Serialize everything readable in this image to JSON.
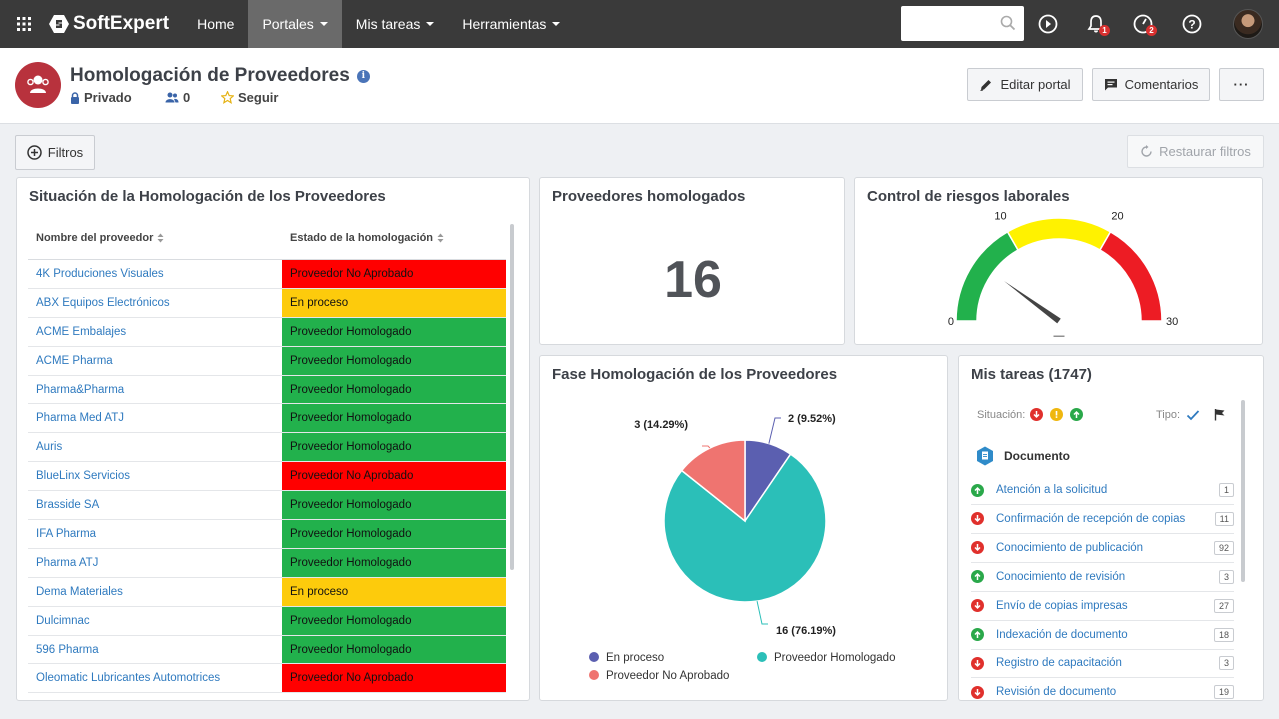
{
  "nav": {
    "brand": "SoftExpert",
    "items": [
      {
        "label": "Home",
        "caret": false,
        "active": false
      },
      {
        "label": "Portales",
        "caret": true,
        "active": true
      },
      {
        "label": "Mis tareas",
        "caret": true,
        "active": false
      },
      {
        "label": "Herramientas",
        "caret": true,
        "active": false
      }
    ],
    "search_value": "",
    "notif_badge": "1",
    "clock_badge": "2"
  },
  "header": {
    "title": "Homologación de Proveedores",
    "privacy": "Privado",
    "members": "0",
    "follow": "Seguir",
    "edit_label": "Editar portal",
    "comments_label": "Comentarios",
    "more_label": "···"
  },
  "filters": {
    "filtros_label": "Filtros",
    "restore_label": "Restaurar filtros"
  },
  "colors": {
    "red": "#ff0000",
    "yellow": "#fdcb0c",
    "green": "#22b14c",
    "pie_teal": "#2bbfb8",
    "pie_blue": "#5b5fb0",
    "pie_salmon": "#ef7470"
  },
  "suppliers": {
    "title": "Situación de la Homologación de los Proveedores",
    "col_name": "Nombre del proveedor",
    "col_status": "Estado de la homologación",
    "rows": [
      {
        "name": "4K Produciones Visuales",
        "status": "Proveedor No Aprobado",
        "color": "#ff0000"
      },
      {
        "name": "ABX Equipos Electrónicos",
        "status": "En proceso",
        "color": "#fdcb0c"
      },
      {
        "name": "ACME Embalajes",
        "status": "Proveedor Homologado",
        "color": "#22b14c"
      },
      {
        "name": "ACME Pharma",
        "status": "Proveedor Homologado",
        "color": "#22b14c"
      },
      {
        "name": "Pharma&Pharma",
        "status": "Proveedor Homologado",
        "color": "#22b14c"
      },
      {
        "name": "Pharma Med ATJ",
        "status": "Proveedor Homologado",
        "color": "#22b14c"
      },
      {
        "name": "Auris",
        "status": "Proveedor Homologado",
        "color": "#22b14c"
      },
      {
        "name": "BlueLinx Servicios",
        "status": "Proveedor No Aprobado",
        "color": "#ff0000"
      },
      {
        "name": "Brasside SA",
        "status": "Proveedor Homologado",
        "color": "#22b14c"
      },
      {
        "name": "IFA Pharma",
        "status": "Proveedor Homologado",
        "color": "#22b14c"
      },
      {
        "name": "Pharma ATJ",
        "status": "Proveedor Homologado",
        "color": "#22b14c"
      },
      {
        "name": "Dema Materiales",
        "status": "En proceso",
        "color": "#fdcb0c"
      },
      {
        "name": "Dulcimnac",
        "status": "Proveedor Homologado",
        "color": "#22b14c"
      },
      {
        "name": "596 Pharma",
        "status": "Proveedor Homologado",
        "color": "#22b14c"
      },
      {
        "name": "Oleomatic Lubricantes Automotrices",
        "status": "Proveedor No Aprobado",
        "color": "#ff0000"
      }
    ]
  },
  "homologados": {
    "title": "Proveedores homologados",
    "value": "16"
  },
  "riesgos": {
    "title": "Control de riesgos laborales",
    "ticks": [
      "0",
      "10",
      "20",
      "30"
    ],
    "min": 0,
    "max": 30,
    "value": 6,
    "value_label": "—",
    "bands": [
      {
        "from": 0,
        "to": 10,
        "color": "#22b14c"
      },
      {
        "from": 10,
        "to": 20,
        "color": "#fff200"
      },
      {
        "from": 20,
        "to": 30,
        "color": "#ed1c24"
      }
    ]
  },
  "fase": {
    "title": "Fase Homologación de los Proveedores"
  },
  "chart_data": {
    "type": "pie",
    "slices": [
      {
        "name": "En proceso",
        "value": 2,
        "label": "2 (9.52%)",
        "color": "#5b5fb0"
      },
      {
        "name": "Proveedor Homologado",
        "value": 16,
        "label": "16 (76.19%)",
        "color": "#2bbfb8"
      },
      {
        "name": "Proveedor No Aprobado",
        "value": 3,
        "label": "3 (14.29%)",
        "color": "#ef7470"
      }
    ],
    "legend": [
      "En proceso",
      "Proveedor Homologado",
      "Proveedor No Aprobado"
    ],
    "legend_placement": "bottom"
  },
  "tareas": {
    "title": "Mis tareas (1747)",
    "situacion_label": "Situación:",
    "tipo_label": "Tipo:",
    "group_label": "Documento",
    "items": [
      {
        "label": "Atención a la solicitud",
        "count": "1",
        "dir": "up"
      },
      {
        "label": "Confirmación de recepción de copias",
        "count": "11",
        "dir": "down"
      },
      {
        "label": "Conocimiento de publicación",
        "count": "92",
        "dir": "down"
      },
      {
        "label": "Conocimiento de revisión",
        "count": "3",
        "dir": "up"
      },
      {
        "label": "Envío de copias impresas",
        "count": "27",
        "dir": "down"
      },
      {
        "label": "Indexación de documento",
        "count": "18",
        "dir": "up"
      },
      {
        "label": "Registro de capacitación",
        "count": "3",
        "dir": "down"
      },
      {
        "label": "Revisión de documento",
        "count": "19",
        "dir": "down"
      }
    ]
  }
}
